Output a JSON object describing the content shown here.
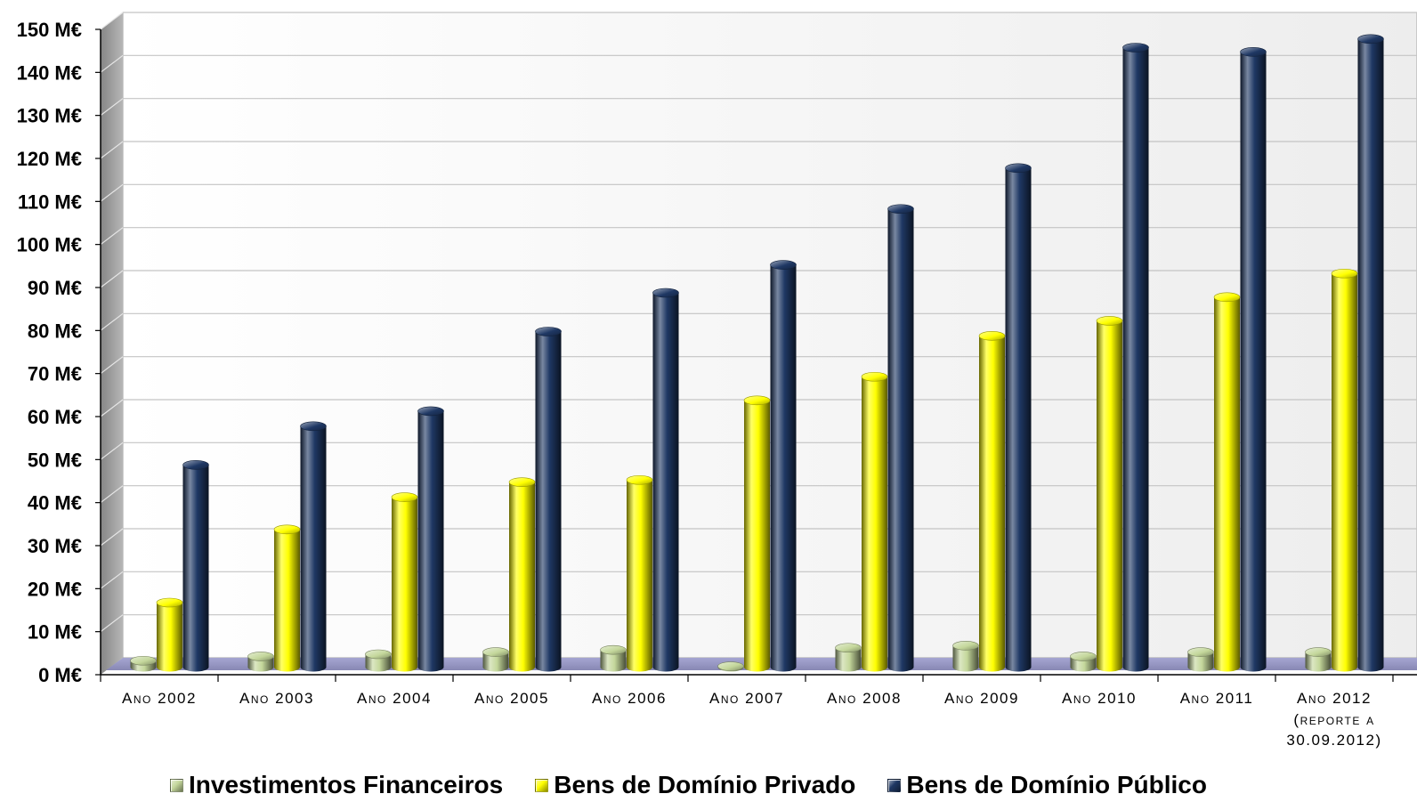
{
  "chart_data": {
    "type": "bar",
    "bar_shape": "cylinder",
    "categories": [
      "Ano 2002",
      "Ano 2003",
      "Ano 2004",
      "Ano 2005",
      "Ano 2006",
      "Ano 2007",
      "Ano 2008",
      "Ano 2009",
      "Ano 2010",
      "Ano 2011",
      "Ano 2012 (reporte a 30.09.2012)"
    ],
    "series": [
      {
        "name": "Investimentos Financeiros",
        "color": "#c4d79b",
        "values": [
          1.5,
          2.5,
          3,
          3.5,
          4,
          0.2,
          4.5,
          5,
          2.5,
          3.5,
          3.5
        ]
      },
      {
        "name": "Bens de Domínio Privado",
        "color": "#ffff00",
        "values": [
          15,
          32,
          39.5,
          43,
          43.5,
          62,
          67.5,
          77,
          80.5,
          86,
          91.5
        ]
      },
      {
        "name": "Bens de Domínio Público",
        "color": "#1f3864",
        "values": [
          47,
          56,
          59.5,
          78,
          87,
          93.5,
          106.5,
          116,
          144,
          143,
          146
        ]
      }
    ],
    "ylim": [
      0,
      150
    ],
    "yticks": [
      0,
      10,
      20,
      30,
      40,
      50,
      60,
      70,
      80,
      90,
      100,
      110,
      120,
      130,
      140,
      150
    ],
    "y_tick_labels": [
      "0 M€",
      "10 M€",
      "20 M€",
      "30 M€",
      "40 M€",
      "50 M€",
      "60 M€",
      "70 M€",
      "80 M€",
      "90 M€",
      "100 M€",
      "110 M€",
      "120 M€",
      "130 M€",
      "140 M€",
      "150 M€"
    ],
    "grid": true,
    "legend": "bottom",
    "wall_color": "#ffffff",
    "side_wall_color": "#9e9e9e",
    "floor_color": "#9b9bcc"
  }
}
